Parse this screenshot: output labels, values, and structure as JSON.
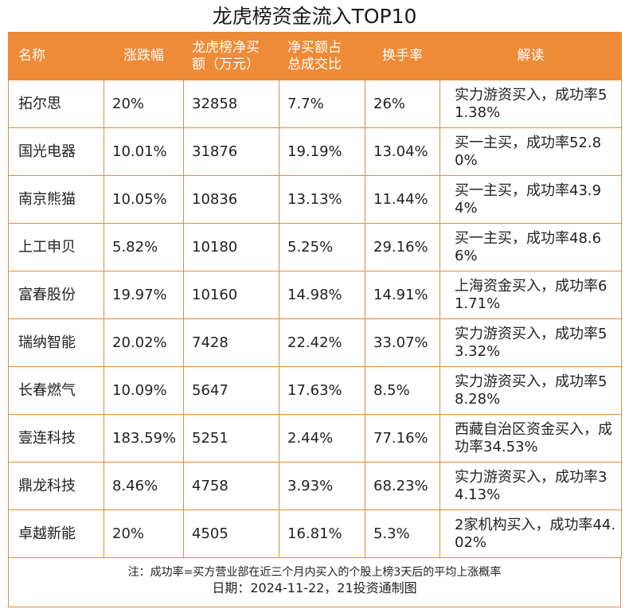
{
  "title": "龙虎榜资金流入TOP10",
  "headers": {
    "name": "名称",
    "change": "涨跌幅",
    "net_buy_line1": "龙虎榜净买",
    "net_buy_line2": "额（万元）",
    "ratio_line1": "净买额占",
    "ratio_line2": "总成交比",
    "turnover": "换手率",
    "note": "解读"
  },
  "rows": [
    {
      "name": "拓尔思",
      "change": "20%",
      "net_buy": "32858",
      "ratio": "7.7%",
      "turnover": "26%",
      "note": "实力游资买入，成功率51.38%"
    },
    {
      "name": "国光电器",
      "change": "10.01%",
      "net_buy": "31876",
      "ratio": "19.19%",
      "turnover": "13.04%",
      "note": "买一主买，成功率52.80%"
    },
    {
      "name": "南京熊猫",
      "change": "10.05%",
      "net_buy": "10836",
      "ratio": "13.13%",
      "turnover": "11.44%",
      "note": "买一主买，成功率43.94%"
    },
    {
      "name": "上工申贝",
      "change": "5.82%",
      "net_buy": "10180",
      "ratio": "5.25%",
      "turnover": "29.16%",
      "note": "买一主买，成功率48.66%"
    },
    {
      "name": "富春股份",
      "change": "19.97%",
      "net_buy": "10160",
      "ratio": "14.98%",
      "turnover": "14.91%",
      "note": "上海资金买入，成功率61.71%"
    },
    {
      "name": "瑞纳智能",
      "change": "20.02%",
      "net_buy": "7428",
      "ratio": "22.42%",
      "turnover": "33.07%",
      "note": "实力游资买入，成功率53.32%"
    },
    {
      "name": "长春燃气",
      "change": "10.09%",
      "net_buy": "5647",
      "ratio": "17.63%",
      "turnover": "8.5%",
      "note": "实力游资买入，成功率58.28%"
    },
    {
      "name": "壹连科技",
      "change": "183.59%",
      "net_buy": "5251",
      "ratio": "2.44%",
      "turnover": "77.16%",
      "note": "西藏自治区资金买入，成功率34.53%"
    },
    {
      "name": "鼎龙科技",
      "change": "8.46%",
      "net_buy": "4758",
      "ratio": "3.93%",
      "turnover": "68.23%",
      "note": "实力游资买入，成功率34.13%"
    },
    {
      "name": "卓越新能",
      "change": "20%",
      "net_buy": "4505",
      "ratio": "16.81%",
      "turnover": "5.3%",
      "note": "2家机构买入，成功率44.02%"
    }
  ],
  "footer": {
    "note": "注：成功率=买方营业部在近三个月内买入的个股上榜3天后的平均上涨概率",
    "date_credit": "日期：2024-11-22，21投资通制图"
  },
  "colors": {
    "header_bg": "#ef8a36",
    "border": "#e8893a"
  }
}
